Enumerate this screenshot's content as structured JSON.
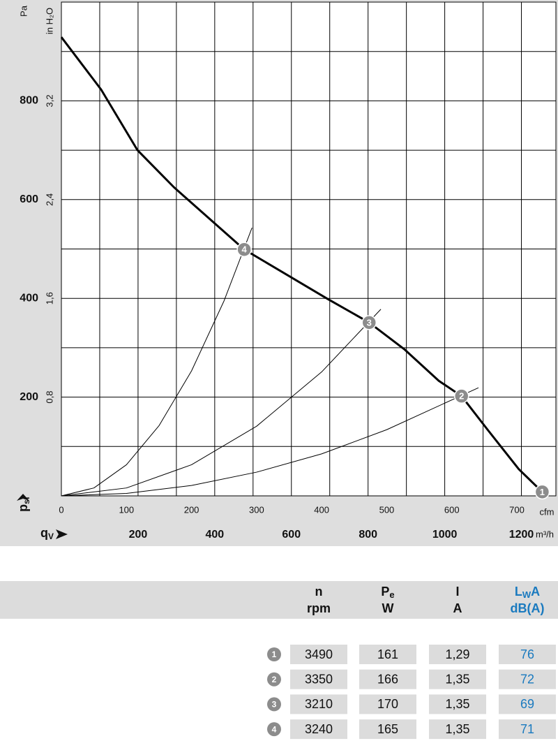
{
  "chart_data": {
    "type": "line",
    "ylabel": "Pa",
    "y2label": "in H₂O",
    "ysymbol": "p",
    "ysymbol_sub": "sf",
    "xsymbol": "q",
    "xsymbol_sub": "V",
    "xunit": "cfm",
    "x2unit": "m³/h",
    "xlim": [
      0,
      760
    ],
    "xticks": [
      0,
      100,
      200,
      300,
      400,
      500,
      600,
      700
    ],
    "x2lim": [
      0,
      1290
    ],
    "x2ticks": [
      200,
      400,
      600,
      800,
      1000,
      1200
    ],
    "x2grid": [
      100,
      200,
      300,
      400,
      500,
      600,
      700,
      800,
      900,
      1000,
      1100,
      1200
    ],
    "ylim": [
      0,
      1000
    ],
    "yticks": [
      200,
      400,
      600,
      800
    ],
    "ygrid": [
      100,
      200,
      300,
      400,
      500,
      600,
      700,
      800,
      900,
      1000
    ],
    "y2lim": [
      0,
      4
    ],
    "y2ticks": [
      {
        "value": 0.8,
        "label": "0,8"
      },
      {
        "value": 1.6,
        "label": "1,6"
      },
      {
        "value": 2.4,
        "label": "2,4"
      },
      {
        "value": 3.2,
        "label": "3,2"
      }
    ],
    "series": [
      {
        "color": "#000000",
        "x": [
          0,
          61,
          117,
          173,
          281,
          409,
          473,
          527,
          580,
          615,
          655,
          703,
          739
        ],
        "values": [
          929,
          823,
          700,
          625,
          499,
          399,
          351,
          297,
          233,
          202,
          134,
          54,
          8
        ]
      },
      {
        "color": "#000000",
        "x": [
          0,
          50,
          100,
          150,
          200,
          250,
          293
        ],
        "values": [
          0,
          16,
          63,
          142,
          253,
          395,
          543
        ]
      },
      {
        "color": "#000000",
        "x": [
          0,
          100,
          200,
          300,
          400,
          491
        ],
        "values": [
          0,
          16,
          63,
          141,
          251,
          378
        ]
      },
      {
        "color": "#000000",
        "x": [
          0,
          100,
          200,
          300,
          400,
          500,
          641
        ],
        "values": [
          0,
          5,
          21,
          48,
          85,
          134,
          219
        ]
      }
    ],
    "points": [
      {
        "label": "1",
        "x": 739,
        "y": 8
      },
      {
        "label": "2",
        "x": 615,
        "y": 202
      },
      {
        "label": "3",
        "x": 473,
        "y": 351
      },
      {
        "label": "4",
        "x": 281,
        "y": 499
      }
    ]
  },
  "table": {
    "header": [
      {
        "symbol": "n",
        "unit": "rpm"
      },
      {
        "symbol": "P",
        "sub": "e",
        "unit": "W"
      },
      {
        "symbol": "I",
        "unit": "A"
      },
      {
        "symbol": "L",
        "sub": "W",
        "suffix": "A",
        "unit": "dB(A)"
      }
    ],
    "rows": [
      {
        "id": "1",
        "cells": [
          "3490",
          "161",
          "1,29",
          "76"
        ]
      },
      {
        "id": "2",
        "cells": [
          "3350",
          "166",
          "1,35",
          "72"
        ]
      },
      {
        "id": "3",
        "cells": [
          "3210",
          "170",
          "1,35",
          "69"
        ]
      },
      {
        "id": "4",
        "cells": [
          "3240",
          "165",
          "1,35",
          "71"
        ]
      }
    ]
  }
}
